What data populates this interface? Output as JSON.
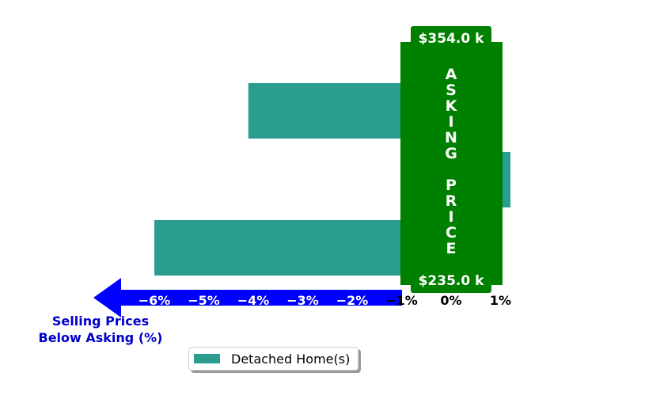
{
  "chart_data": {
    "type": "bar",
    "orientation": "horizontal",
    "series": [
      {
        "name": "Detached Home(s)",
        "values": [
          -4.1,
          1.2,
          -6.0
        ]
      }
    ],
    "xlim": [
      -6.8,
      1.4
    ],
    "xticks": [
      -6,
      -5,
      -4,
      -3,
      -2,
      -1,
      0,
      1
    ],
    "xtick_labels": [
      "−6%",
      "−5%",
      "−4%",
      "−3%",
      "−2%",
      "−1%",
      "0%",
      "1%"
    ],
    "xlabel": "Selling Prices\nBelow Asking (%)",
    "asking_band": {
      "label": "ASKING PRICE",
      "top_value": "$354.0 k",
      "bottom_value": "$235.0 k"
    },
    "legend_position": "bottom-center",
    "grid": false
  },
  "colors": {
    "bar": "#2a9d8f",
    "band": "#008000",
    "arrow": "#0000ff",
    "xlabel": "#0000cc",
    "tick_on_arrow": "#ffffff",
    "tick_plain": "#000000"
  }
}
